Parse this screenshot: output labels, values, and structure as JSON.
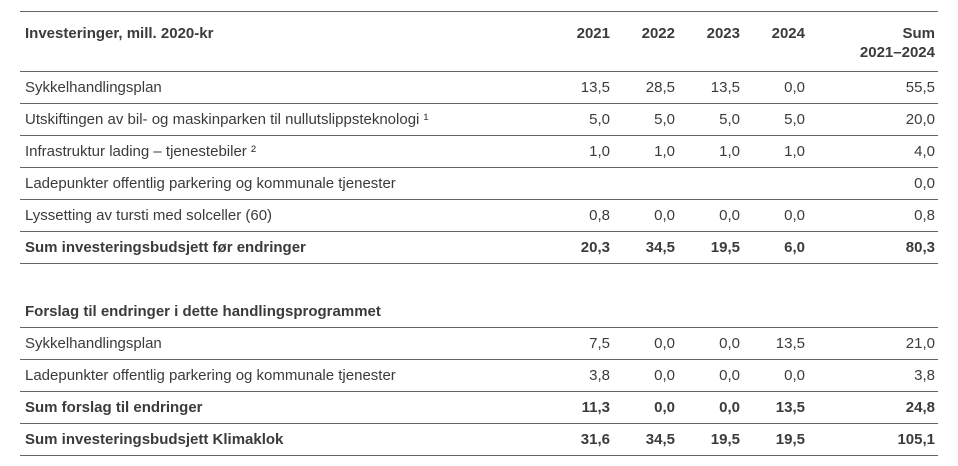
{
  "table": {
    "header": {
      "label": "Investeringer, mill. 2020-kr",
      "years": [
        "2021",
        "2022",
        "2023",
        "2024"
      ],
      "sum_line1": "Sum",
      "sum_line2": "2021–2024"
    },
    "section1": {
      "rows": [
        {
          "label": "Sykkelhandlingsplan",
          "values": [
            "13,5",
            "28,5",
            "13,5",
            "0,0",
            "55,5"
          ]
        },
        {
          "label": "Utskiftingen av bil- og maskinparken til nullutslippsteknologi ¹",
          "values": [
            "5,0",
            "5,0",
            "5,0",
            "5,0",
            "20,0"
          ]
        },
        {
          "label": "Infrastruktur lading – tjenestebiler ²",
          "values": [
            "1,0",
            "1,0",
            "1,0",
            "1,0",
            "4,0"
          ]
        },
        {
          "label": "Ladepunkter offentlig parkering og kommunale tjenester",
          "values": [
            "",
            "",
            "",
            "",
            "0,0"
          ]
        },
        {
          "label": "Lyssetting av tursti med solceller (60)",
          "values": [
            "0,8",
            "0,0",
            "0,0",
            "0,0",
            "0,8"
          ]
        },
        {
          "label": "Sum investeringsbudsjett før endringer",
          "values": [
            "20,3",
            "34,5",
            "19,5",
            "6,0",
            "80,3"
          ]
        }
      ]
    },
    "section2": {
      "title": "Forslag til endringer i dette handlingsprogrammet",
      "rows": [
        {
          "label": "Sykkelhandlingsplan",
          "values": [
            "7,5",
            "0,0",
            "0,0",
            "13,5",
            "21,0"
          ]
        },
        {
          "label": "Ladepunkter offentlig parkering og kommunale tjenester",
          "values": [
            "3,8",
            "0,0",
            "0,0",
            "0,0",
            "3,8"
          ]
        },
        {
          "label": "Sum forslag til endringer",
          "values": [
            "11,3",
            "0,0",
            "0,0",
            "13,5",
            "24,8"
          ]
        },
        {
          "label": "Sum investeringsbudsjett Klimaklok",
          "values": [
            "31,6",
            "34,5",
            "19,5",
            "19,5",
            "105,1"
          ]
        }
      ]
    },
    "colors": {
      "text": "#3b3b3b",
      "rule_line": "#646464",
      "background": "#ffffff"
    }
  }
}
